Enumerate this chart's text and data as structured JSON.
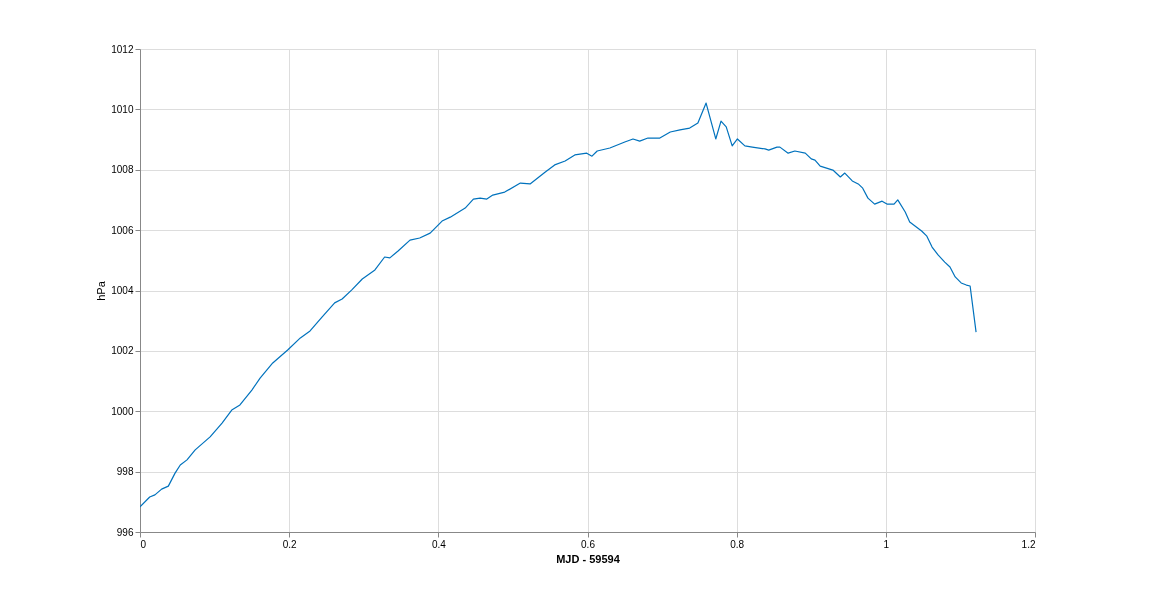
{
  "chart_data": {
    "type": "line",
    "xlabel": "MJD - 59594",
    "ylabel": "hPa",
    "xlim": [
      0,
      1.2
    ],
    "xticks": [
      0,
      0.2,
      0.4,
      0.6,
      0.8,
      1,
      1.2
    ],
    "ylim": [
      996,
      1012
    ],
    "yticks": [
      996,
      998,
      1000,
      1002,
      1004,
      1006,
      1008,
      1010,
      1012
    ],
    "grid": true,
    "marker": "none",
    "line_style": "solid",
    "x": [
      0,
      0.013,
      0.02,
      0.029,
      0.038,
      0.047,
      0.054,
      0.063,
      0.074,
      0.094,
      0.11,
      0.123,
      0.134,
      0.15,
      0.161,
      0.178,
      0.198,
      0.215,
      0.228,
      0.244,
      0.261,
      0.271,
      0.284,
      0.298,
      0.315,
      0.328,
      0.335,
      0.346,
      0.362,
      0.375,
      0.389,
      0.405,
      0.416,
      0.436,
      0.447,
      0.456,
      0.465,
      0.473,
      0.489,
      0.51,
      0.523,
      0.543,
      0.556,
      0.57,
      0.583,
      0.599,
      0.606,
      0.613,
      0.63,
      0.65,
      0.661,
      0.67,
      0.681,
      0.697,
      0.711,
      0.724,
      0.737,
      0.748,
      0.759,
      0.772,
      0.779,
      0.786,
      0.794,
      0.801,
      0.811,
      0.821,
      0.838,
      0.843,
      0.854,
      0.858,
      0.869,
      0.878,
      0.892,
      0.9,
      0.905,
      0.912,
      0.929,
      0.939,
      0.945,
      0.955,
      0.963,
      0.969,
      0.976,
      0.985,
      0.995,
      1.002,
      1.011,
      1.016,
      1.026,
      1.032,
      1.048,
      1.055,
      1.062,
      1.07,
      1.079,
      1.086,
      1.093,
      1.101,
      1.108,
      1.113,
      1.121
    ],
    "series": [
      {
        "color": "#0072bd",
        "values": [
          996.83,
          997.16,
          997.23,
          997.42,
          997.52,
          997.95,
          998.22,
          998.39,
          998.72,
          999.15,
          999.61,
          1000.04,
          1000.21,
          1000.7,
          1001.1,
          1001.6,
          1002.03,
          1002.43,
          1002.66,
          1003.12,
          1003.59,
          1003.72,
          1004.02,
          1004.38,
          1004.68,
          1005.11,
          1005.08,
          1005.31,
          1005.67,
          1005.74,
          1005.9,
          1006.3,
          1006.43,
          1006.73,
          1007.03,
          1007.06,
          1007.03,
          1007.16,
          1007.26,
          1007.56,
          1007.53,
          1007.92,
          1008.16,
          1008.29,
          1008.49,
          1008.55,
          1008.45,
          1008.62,
          1008.72,
          1008.92,
          1009.02,
          1008.95,
          1009.05,
          1009.05,
          1009.25,
          1009.32,
          1009.38,
          1009.55,
          1010.21,
          1009.02,
          1009.61,
          1009.42,
          1008.79,
          1009.02,
          1008.79,
          1008.75,
          1008.69,
          1008.65,
          1008.75,
          1008.75,
          1008.55,
          1008.62,
          1008.55,
          1008.36,
          1008.32,
          1008.12,
          1007.99,
          1007.76,
          1007.89,
          1007.63,
          1007.53,
          1007.39,
          1007.06,
          1006.86,
          1006.96,
          1006.86,
          1006.86,
          1007.0,
          1006.6,
          1006.27,
          1005.97,
          1005.8,
          1005.44,
          1005.18,
          1004.94,
          1004.78,
          1004.45,
          1004.25,
          1004.18,
          1004.15,
          1002.62
        ]
      }
    ]
  }
}
